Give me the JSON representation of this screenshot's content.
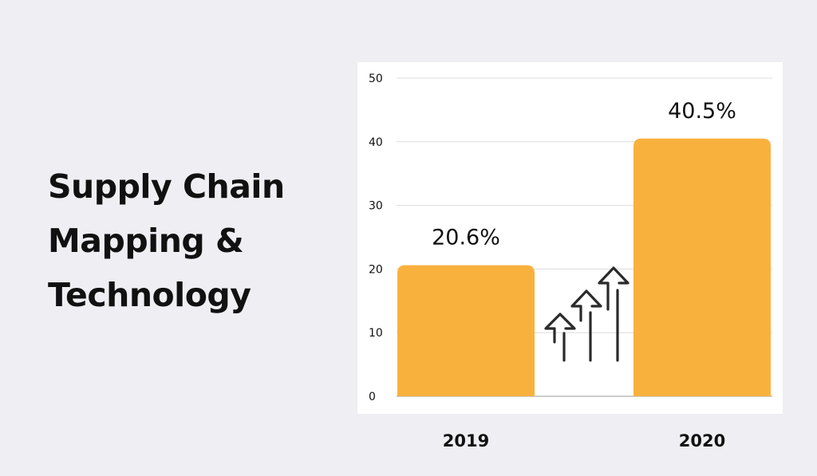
{
  "title_lines": [
    "Supply Chain",
    "Mapping &",
    "Technology"
  ],
  "chart_data": {
    "type": "bar",
    "categories": [
      "2019",
      "2020"
    ],
    "values": [
      20.6,
      40.5
    ],
    "data_labels": [
      "20.6%",
      "40.5%"
    ],
    "ylim": [
      0,
      50
    ],
    "yticks": [
      0,
      10,
      20,
      30,
      40,
      50
    ],
    "grid": true,
    "bar_color": "#f9b13d",
    "decoration_icon": "rising-arrows-icon"
  }
}
